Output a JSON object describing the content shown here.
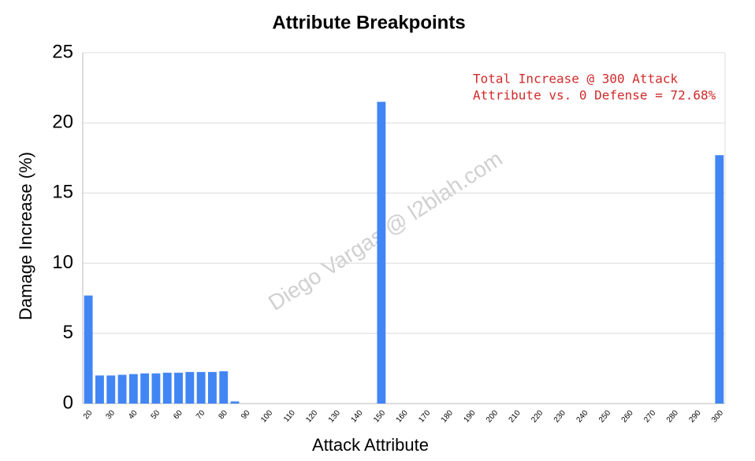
{
  "chart_data": {
    "type": "bar",
    "title": "Attribute Breakpoints",
    "x_label": "Attack Attribute",
    "y_label": "Damage Increase (%)",
    "annotation": [
      "Total Increase @ 300 Attack",
      "Attribute vs. 0 Defense = 72.68%"
    ],
    "watermark": "Diego Vargas @ l2blah.com",
    "categories": [
      "20",
      null,
      "30",
      null,
      "40",
      null,
      "50",
      null,
      "60",
      null,
      "70",
      null,
      "80",
      null,
      "90",
      null,
      "100",
      null,
      "110",
      null,
      "120",
      null,
      "130",
      null,
      "140",
      null,
      "150",
      null,
      "160",
      null,
      "170",
      null,
      "180",
      null,
      "190",
      null,
      "200",
      null,
      "210",
      null,
      "220",
      null,
      "230",
      null,
      "240",
      null,
      "250",
      null,
      "260",
      null,
      "270",
      null,
      "280",
      null,
      "290",
      null,
      "300"
    ],
    "values": [
      7.7,
      2.0,
      2.0,
      2.05,
      2.1,
      2.15,
      2.15,
      2.2,
      2.2,
      2.25,
      2.25,
      2.25,
      2.3,
      0.15,
      0,
      0,
      0,
      0,
      0,
      0,
      0,
      0,
      0,
      0,
      0,
      0,
      21.5,
      0,
      0,
      0,
      0,
      0,
      0,
      0,
      0,
      0,
      0,
      0,
      0,
      0,
      0,
      0,
      0,
      0,
      0,
      0,
      0,
      0,
      0,
      0,
      0,
      0,
      0,
      0,
      0,
      0,
      17.7
    ],
    "color": "#4285f4",
    "ylim": [
      0,
      25
    ],
    "yticks": [
      0,
      5,
      10,
      15,
      20,
      25
    ],
    "grid": true
  }
}
